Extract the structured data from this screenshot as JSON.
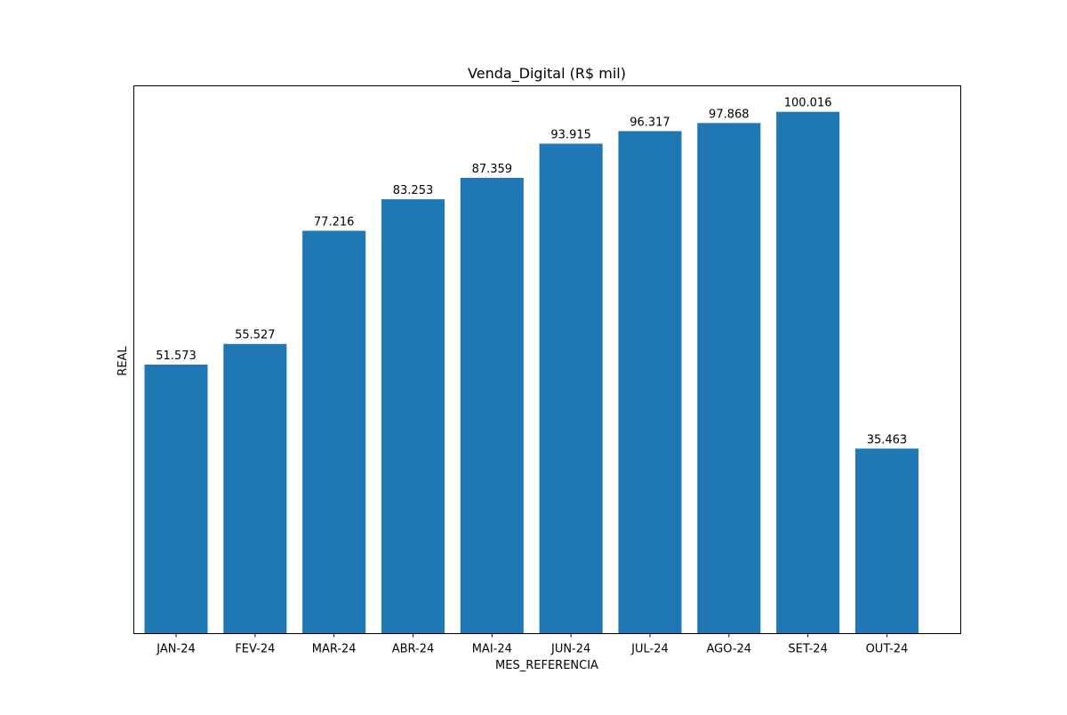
{
  "chart_data": {
    "type": "bar",
    "title": "Venda_Digital (R$ mil)",
    "xlabel": "MES_REFERENCIA",
    "ylabel": "REAL",
    "categories": [
      "JAN-24",
      "FEV-24",
      "MAR-24",
      "ABR-24",
      "MAI-24",
      "JUN-24",
      "JUL-24",
      "AGO-24",
      "SET-24",
      "OUT-24"
    ],
    "values": [
      51.573,
      55.527,
      77.216,
      83.253,
      87.359,
      93.915,
      96.317,
      97.868,
      100.016,
      35.463
    ],
    "value_labels": [
      "51.573",
      "55.527",
      "77.216",
      "83.253",
      "87.359",
      "93.915",
      "96.317",
      "97.868",
      "100.016",
      "35.463"
    ],
    "ylim": [
      0,
      105
    ],
    "y_ticks_visible": false,
    "grid": false,
    "bar_color": "#1f77b4"
  }
}
